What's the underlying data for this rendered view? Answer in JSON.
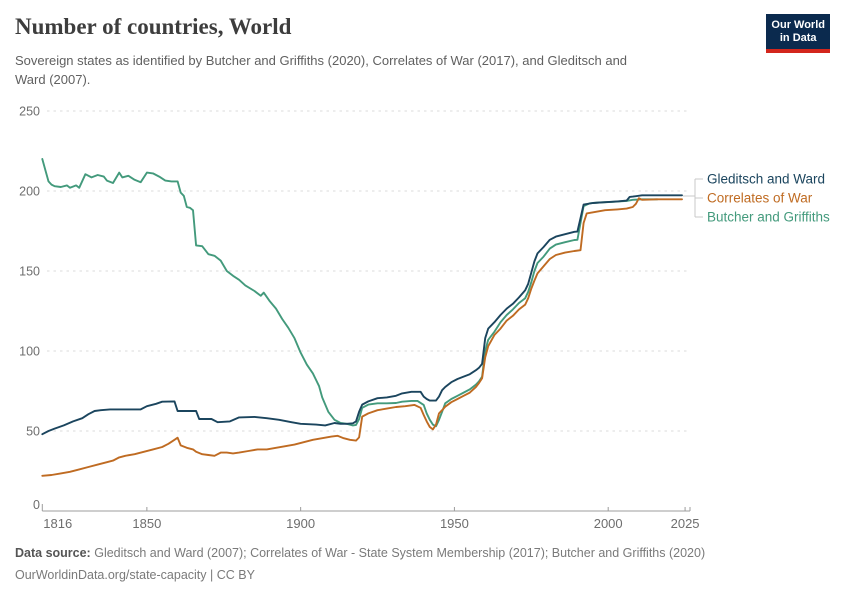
{
  "header": {
    "title": "Number of countries, World",
    "subtitle": "Sovereign states as identified by Butcher and Griffiths (2020), Correlates of War (2017), and Gleditsch and Ward (2007).",
    "logo_line1": "Our World",
    "logo_line2": "in Data",
    "logo_bg": "#0b2a4e",
    "logo_accent": "#d3261c"
  },
  "footer": {
    "label": "Data source:",
    "sources": "Gleditsch and Ward (2007); Correlates of War - State System Membership (2017); Butcher and Griffiths (2020)",
    "url": "OurWorldinData.org/state-capacity | CC BY"
  },
  "chart_data": {
    "type": "line",
    "title": "Number of countries, World",
    "xlabel": "",
    "ylabel": "",
    "xlim": [
      1816,
      2025
    ],
    "ylim": [
      0,
      250
    ],
    "yticks": [
      0,
      50,
      100,
      150,
      200,
      250
    ],
    "xticks": [
      1816,
      1850,
      1900,
      1950,
      2000,
      2025
    ],
    "grid": "dashed-horizontal",
    "legend_position": "right",
    "series": [
      {
        "name": "Gleditsch and Ward",
        "color": "#1b455e",
        "points": [
          [
            1816,
            48
          ],
          [
            1818,
            50
          ],
          [
            1820,
            51.5
          ],
          [
            1823,
            53.5
          ],
          [
            1826,
            56
          ],
          [
            1829,
            58
          ],
          [
            1831,
            60.5
          ],
          [
            1833,
            62.5
          ],
          [
            1835,
            63
          ],
          [
            1838,
            63.5
          ],
          [
            1844,
            63.5
          ],
          [
            1848,
            63.5
          ],
          [
            1850,
            65.5
          ],
          [
            1853,
            67
          ],
          [
            1855,
            68.3
          ],
          [
            1859,
            68.5
          ],
          [
            1860,
            62.5
          ],
          [
            1866,
            62.5
          ],
          [
            1867,
            57.5
          ],
          [
            1871,
            57.5
          ],
          [
            1873,
            55.5
          ],
          [
            1877,
            56
          ],
          [
            1880,
            58.5
          ],
          [
            1885,
            58.8
          ],
          [
            1889,
            58
          ],
          [
            1893,
            57
          ],
          [
            1897,
            55.5
          ],
          [
            1900,
            54.5
          ],
          [
            1905,
            54
          ],
          [
            1908,
            53.5
          ],
          [
            1911,
            55
          ],
          [
            1913,
            54.5
          ],
          [
            1915,
            54.5
          ],
          [
            1917,
            54.8
          ],
          [
            1918,
            56
          ],
          [
            1919,
            62
          ],
          [
            1920,
            66.5
          ],
          [
            1922,
            68.5
          ],
          [
            1925,
            70.5
          ],
          [
            1928,
            71
          ],
          [
            1931,
            72
          ],
          [
            1933,
            73.5
          ],
          [
            1936,
            74.5
          ],
          [
            1939,
            74.5
          ],
          [
            1940,
            71.5
          ],
          [
            1941,
            70
          ],
          [
            1942,
            69
          ],
          [
            1944,
            69
          ],
          [
            1945,
            71.5
          ],
          [
            1946,
            75.5
          ],
          [
            1947,
            77.5
          ],
          [
            1949,
            80.5
          ],
          [
            1951,
            82.5
          ],
          [
            1953,
            84
          ],
          [
            1955,
            85.5
          ],
          [
            1957,
            88
          ],
          [
            1958,
            89.5
          ],
          [
            1959,
            92
          ],
          [
            1960,
            108
          ],
          [
            1961,
            114
          ],
          [
            1963,
            118
          ],
          [
            1965,
            122.5
          ],
          [
            1967,
            126.5
          ],
          [
            1969,
            129.5
          ],
          [
            1971,
            133.5
          ],
          [
            1973,
            138
          ],
          [
            1974,
            142
          ],
          [
            1975,
            149
          ],
          [
            1976,
            156
          ],
          [
            1977,
            161
          ],
          [
            1979,
            165
          ],
          [
            1981,
            169.5
          ],
          [
            1983,
            171.5
          ],
          [
            1986,
            173
          ],
          [
            1989,
            174.5
          ],
          [
            1990,
            174.6
          ],
          [
            1991,
            183
          ],
          [
            1992,
            191.5
          ],
          [
            1995,
            192.5
          ],
          [
            1999,
            193
          ],
          [
            2003,
            193.5
          ],
          [
            2006,
            194
          ],
          [
            2007,
            196.3
          ],
          [
            2008,
            196.5
          ],
          [
            2011,
            197.3
          ],
          [
            2015,
            197.3
          ],
          [
            2024,
            197.3
          ]
        ]
      },
      {
        "name": "Correlates of War",
        "color": "#bf6b22",
        "points": [
          [
            1816,
            22
          ],
          [
            1819,
            22.5
          ],
          [
            1822,
            23.5
          ],
          [
            1825,
            24.5
          ],
          [
            1828,
            26
          ],
          [
            1831,
            27.5
          ],
          [
            1834,
            29
          ],
          [
            1837,
            30.5
          ],
          [
            1839,
            31.5
          ],
          [
            1841,
            33.5
          ],
          [
            1843,
            34.5
          ],
          [
            1846,
            35.5
          ],
          [
            1849,
            37
          ],
          [
            1852,
            38.5
          ],
          [
            1855,
            40
          ],
          [
            1857,
            42
          ],
          [
            1859,
            44.5
          ],
          [
            1860,
            45.8
          ],
          [
            1861,
            41
          ],
          [
            1863,
            39.5
          ],
          [
            1865,
            38.5
          ],
          [
            1866,
            37
          ],
          [
            1868,
            35.5
          ],
          [
            1870,
            35
          ],
          [
            1872,
            34.5
          ],
          [
            1874,
            36.5
          ],
          [
            1876,
            36.5
          ],
          [
            1878,
            36
          ],
          [
            1880,
            36.5
          ],
          [
            1883,
            37.5
          ],
          [
            1886,
            38.5
          ],
          [
            1889,
            38.5
          ],
          [
            1892,
            39.5
          ],
          [
            1895,
            40.5
          ],
          [
            1898,
            41.5
          ],
          [
            1901,
            43
          ],
          [
            1904,
            44.5
          ],
          [
            1907,
            45.5
          ],
          [
            1910,
            46.5
          ],
          [
            1912,
            47
          ],
          [
            1914,
            45.5
          ],
          [
            1916,
            44.5
          ],
          [
            1918,
            44
          ],
          [
            1919,
            46
          ],
          [
            1920,
            59
          ],
          [
            1922,
            61
          ],
          [
            1925,
            63
          ],
          [
            1928,
            64
          ],
          [
            1931,
            65
          ],
          [
            1934,
            65.5
          ],
          [
            1937,
            66.3
          ],
          [
            1939,
            64.5
          ],
          [
            1940,
            60
          ],
          [
            1941,
            56
          ],
          [
            1942,
            52.5
          ],
          [
            1943,
            51
          ],
          [
            1944,
            54
          ],
          [
            1945,
            61
          ],
          [
            1946,
            63
          ],
          [
            1947,
            65.2
          ],
          [
            1949,
            68
          ],
          [
            1951,
            70
          ],
          [
            1953,
            72
          ],
          [
            1955,
            74
          ],
          [
            1957,
            77.5
          ],
          [
            1958,
            80
          ],
          [
            1959,
            83
          ],
          [
            1960,
            96
          ],
          [
            1961,
            103
          ],
          [
            1963,
            110
          ],
          [
            1965,
            114
          ],
          [
            1967,
            119
          ],
          [
            1969,
            122
          ],
          [
            1971,
            126
          ],
          [
            1973,
            129
          ],
          [
            1974,
            133
          ],
          [
            1975,
            139
          ],
          [
            1976,
            144
          ],
          [
            1977,
            148.5
          ],
          [
            1979,
            153
          ],
          [
            1981,
            157.5
          ],
          [
            1983,
            160
          ],
          [
            1986,
            161.5
          ],
          [
            1989,
            162.5
          ],
          [
            1991,
            163
          ],
          [
            1992,
            180
          ],
          [
            1993,
            186
          ],
          [
            1996,
            187
          ],
          [
            1999,
            188
          ],
          [
            2003,
            188.5
          ],
          [
            2006,
            189
          ],
          [
            2008,
            190
          ],
          [
            2009,
            192
          ],
          [
            2010,
            195.5
          ],
          [
            2011,
            194.5
          ],
          [
            2016,
            194.8
          ],
          [
            2024,
            194.8
          ]
        ]
      },
      {
        "name": "Butcher and Griffiths",
        "color": "#439a7c",
        "points": [
          [
            1816,
            220
          ],
          [
            1817,
            213
          ],
          [
            1818,
            206
          ],
          [
            1819,
            204
          ],
          [
            1820,
            203
          ],
          [
            1822,
            202.5
          ],
          [
            1824,
            203.5
          ],
          [
            1825,
            202
          ],
          [
            1827,
            203.5
          ],
          [
            1828,
            202
          ],
          [
            1830,
            210.5
          ],
          [
            1832,
            208.5
          ],
          [
            1834,
            210
          ],
          [
            1836,
            209
          ],
          [
            1837,
            206.5
          ],
          [
            1839,
            205
          ],
          [
            1841,
            211.5
          ],
          [
            1842,
            208.5
          ],
          [
            1844,
            209.5
          ],
          [
            1846,
            207
          ],
          [
            1848,
            205.5
          ],
          [
            1850,
            211.5
          ],
          [
            1852,
            211
          ],
          [
            1854,
            209
          ],
          [
            1856,
            206.5
          ],
          [
            1858,
            206
          ],
          [
            1860,
            206
          ],
          [
            1861,
            199
          ],
          [
            1862,
            197
          ],
          [
            1863,
            190
          ],
          [
            1864,
            189.5
          ],
          [
            1865,
            188
          ],
          [
            1866,
            166
          ],
          [
            1868,
            165.5
          ],
          [
            1870,
            160.5
          ],
          [
            1872,
            159.5
          ],
          [
            1874,
            156.5
          ],
          [
            1876,
            150
          ],
          [
            1878,
            147
          ],
          [
            1880,
            144.5
          ],
          [
            1882,
            141
          ],
          [
            1885,
            137.5
          ],
          [
            1887,
            134.5
          ],
          [
            1888,
            136.5
          ],
          [
            1890,
            131
          ],
          [
            1892,
            126.5
          ],
          [
            1894,
            120
          ],
          [
            1896,
            114.5
          ],
          [
            1898,
            108
          ],
          [
            1900,
            99
          ],
          [
            1902,
            91.5
          ],
          [
            1904,
            86
          ],
          [
            1906,
            78
          ],
          [
            1907,
            71
          ],
          [
            1909,
            62
          ],
          [
            1911,
            57
          ],
          [
            1913,
            55
          ],
          [
            1915,
            54.5
          ],
          [
            1917,
            53.5
          ],
          [
            1918,
            53.8
          ],
          [
            1919,
            57.5
          ],
          [
            1920,
            64.5
          ],
          [
            1922,
            66.5
          ],
          [
            1925,
            67.3
          ],
          [
            1928,
            67.3
          ],
          [
            1931,
            67.5
          ],
          [
            1933,
            68.3
          ],
          [
            1936,
            68.8
          ],
          [
            1938,
            68.8
          ],
          [
            1940,
            66.3
          ],
          [
            1941,
            61
          ],
          [
            1942,
            57
          ],
          [
            1943,
            54
          ],
          [
            1944,
            53
          ],
          [
            1945,
            57
          ],
          [
            1946,
            62
          ],
          [
            1947,
            67.3
          ],
          [
            1949,
            70
          ],
          [
            1951,
            72
          ],
          [
            1953,
            74
          ],
          [
            1955,
            76
          ],
          [
            1957,
            79
          ],
          [
            1958,
            81
          ],
          [
            1959,
            84
          ],
          [
            1960,
            100
          ],
          [
            1961,
            107
          ],
          [
            1962,
            109.5
          ],
          [
            1963,
            112
          ],
          [
            1965,
            118
          ],
          [
            1967,
            122.5
          ],
          [
            1969,
            126
          ],
          [
            1971,
            130
          ],
          [
            1973,
            133
          ],
          [
            1974,
            137
          ],
          [
            1975,
            143
          ],
          [
            1976,
            150
          ],
          [
            1977,
            155
          ],
          [
            1979,
            159
          ],
          [
            1981,
            164
          ],
          [
            1983,
            166.5
          ],
          [
            1986,
            168
          ],
          [
            1989,
            169.4
          ],
          [
            1990,
            169.5
          ],
          [
            1991,
            180
          ],
          [
            1992,
            190.5
          ],
          [
            1994,
            192.3
          ],
          [
            1997,
            192.8
          ],
          [
            2001,
            193.2
          ],
          [
            2006,
            193.8
          ],
          [
            2008,
            194.5
          ],
          [
            2011,
            194.8
          ],
          [
            2016,
            194.8
          ]
        ]
      }
    ],
    "legend": [
      "Gleditsch and Ward",
      "Correlates of War",
      "Butcher and Griffiths"
    ]
  }
}
